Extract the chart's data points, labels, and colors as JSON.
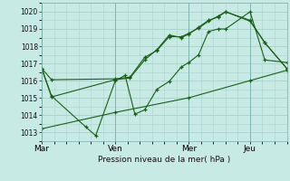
{
  "background_color": "#c8eae4",
  "grid_color": "#aad4cc",
  "line_color": "#1a5e1a",
  "xlabel": "Pression niveau de la mer( hPa )",
  "x_tick_labels": [
    "Mar",
    "Ven",
    "Mer",
    "Jeu"
  ],
  "x_tick_positions": [
    0.0,
    0.3,
    0.6,
    0.85
  ],
  "xlim": [
    0.0,
    1.0
  ],
  "ylim": [
    1012.5,
    1020.5
  ],
  "yticks": [
    1013,
    1014,
    1015,
    1016,
    1017,
    1018,
    1019,
    1020
  ],
  "series": [
    {
      "name": "line1_upper",
      "x": [
        0.0,
        0.04,
        0.3,
        0.36,
        0.42,
        0.47,
        0.52,
        0.57,
        0.6,
        0.64,
        0.68,
        0.72,
        0.75,
        0.85,
        0.91,
        1.0
      ],
      "y": [
        1016.7,
        1016.05,
        1016.1,
        1016.2,
        1017.35,
        1017.75,
        1018.55,
        1018.55,
        1018.75,
        1019.05,
        1019.45,
        1019.75,
        1020.0,
        1019.45,
        1018.2,
        1016.7
      ]
    },
    {
      "name": "line2_mid",
      "x": [
        0.0,
        0.04,
        0.3,
        0.36,
        0.42,
        0.47,
        0.52,
        0.57,
        0.6,
        0.64,
        0.68,
        0.72,
        0.75,
        0.85,
        0.91,
        1.0
      ],
      "y": [
        1016.7,
        1015.05,
        1016.05,
        1016.15,
        1017.2,
        1017.8,
        1018.65,
        1018.5,
        1018.7,
        1019.1,
        1019.5,
        1019.7,
        1020.0,
        1019.5,
        1018.2,
        1016.7
      ]
    },
    {
      "name": "line3_volatile",
      "x": [
        0.0,
        0.04,
        0.18,
        0.22,
        0.3,
        0.34,
        0.38,
        0.42,
        0.47,
        0.52,
        0.57,
        0.6,
        0.64,
        0.68,
        0.72,
        0.75,
        0.85,
        0.91,
        1.0
      ],
      "y": [
        1016.7,
        1015.1,
        1013.3,
        1012.8,
        1016.0,
        1016.3,
        1014.05,
        1014.3,
        1015.5,
        1015.95,
        1016.8,
        1017.05,
        1017.5,
        1018.85,
        1019.0,
        1019.0,
        1020.0,
        1017.2,
        1017.05
      ]
    },
    {
      "name": "line4_diagonal",
      "x": [
        0.0,
        0.3,
        0.6,
        0.85,
        1.0
      ],
      "y": [
        1013.2,
        1014.15,
        1015.0,
        1016.0,
        1016.6
      ]
    }
  ]
}
